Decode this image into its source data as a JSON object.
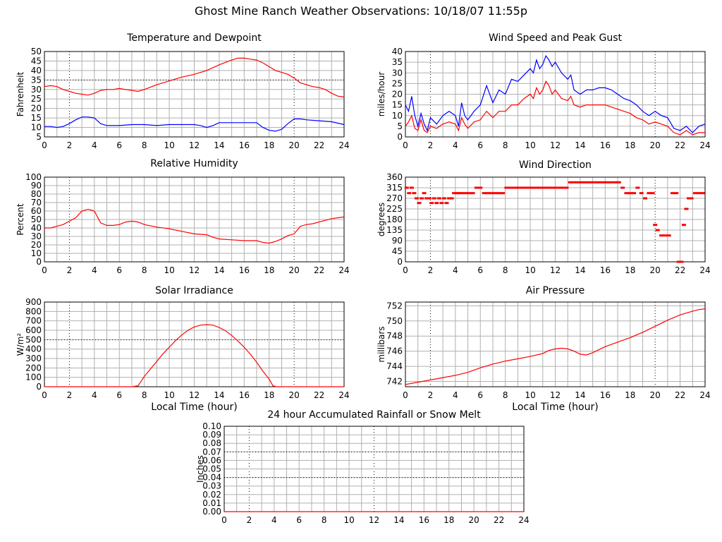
{
  "page": {
    "title": "Ghost Mine Ranch Weather Observations: 10/18/07 11:55p"
  },
  "chart_data": [
    {
      "id": "temp",
      "type": "line",
      "title": "Temperature and Dewpoint",
      "xlabel": "",
      "ylabel": "Fahrenheit",
      "xlim": [
        0,
        24
      ],
      "ylim": [
        5,
        50
      ],
      "xticks": [
        0,
        2,
        4,
        6,
        8,
        10,
        12,
        14,
        16,
        18,
        20,
        22,
        24
      ],
      "yticks": [
        5,
        10,
        15,
        20,
        25,
        30,
        35,
        40,
        45,
        50
      ],
      "series": [
        {
          "color": "#ff0000",
          "x": [
            0,
            0.5,
            1,
            1.5,
            2,
            2.5,
            3,
            3.5,
            4,
            4.5,
            5,
            5.5,
            6,
            6.5,
            7,
            7.5,
            8,
            9,
            10,
            11,
            12,
            13,
            14,
            15,
            15.5,
            16,
            16.5,
            17,
            17.5,
            18,
            18.5,
            19,
            19.5,
            20,
            20.5,
            21,
            21.5,
            22,
            22.5,
            23,
            23.5,
            24
          ],
          "y": [
            31.5,
            32,
            31.5,
            30,
            29,
            28,
            27.5,
            27,
            28,
            29.5,
            30,
            30,
            30.5,
            30,
            29.5,
            29,
            30,
            32.5,
            34.5,
            36.5,
            38,
            40,
            43,
            45.5,
            46.5,
            46.5,
            46,
            45.5,
            44,
            42,
            40,
            39,
            38,
            36,
            33.5,
            32.5,
            31.5,
            31,
            30,
            28,
            26.5,
            26
          ]
        },
        {
          "color": "#0000ff",
          "x": [
            0,
            0.5,
            1,
            1.5,
            2,
            2.5,
            3,
            3.5,
            4,
            4.5,
            5,
            6,
            7,
            8,
            9,
            10,
            11,
            12,
            12.5,
            13,
            13.5,
            14,
            15,
            16,
            17,
            17.5,
            18,
            18.5,
            19,
            19.5,
            20,
            20.5,
            21,
            22,
            23,
            24
          ],
          "y": [
            10.5,
            10.5,
            10,
            10.5,
            12,
            14,
            15.5,
            15.5,
            15,
            12,
            11,
            11,
            11.5,
            11.5,
            11,
            11.5,
            11.5,
            11.5,
            11,
            10,
            11,
            12.5,
            12.5,
            12.5,
            12.5,
            10,
            8.5,
            8,
            9,
            12,
            14.5,
            14.5,
            14,
            13.5,
            13,
            11.5
          ]
        }
      ]
    },
    {
      "id": "wind",
      "type": "line",
      "title": "Wind Speed and Peak Gust",
      "xlabel": "",
      "ylabel": "miles/hour",
      "xlim": [
        0,
        24
      ],
      "ylim": [
        0,
        40
      ],
      "xticks": [
        0,
        2,
        4,
        6,
        8,
        10,
        12,
        14,
        16,
        18,
        20,
        22,
        24
      ],
      "yticks": [
        0,
        5,
        10,
        15,
        20,
        25,
        30,
        35,
        40
      ],
      "series": [
        {
          "color": "#0000ff",
          "x": [
            0,
            0.25,
            0.5,
            0.75,
            1,
            1.25,
            1.5,
            1.75,
            2,
            2.5,
            3,
            3.5,
            4,
            4.25,
            4.5,
            4.75,
            5,
            5.5,
            6,
            6.5,
            7,
            7.5,
            8,
            8.5,
            9,
            9.5,
            10,
            10.25,
            10.5,
            10.75,
            11,
            11.25,
            11.5,
            11.75,
            12,
            12.5,
            13,
            13.25,
            13.5,
            14,
            14.5,
            15,
            15.5,
            16,
            16.5,
            17,
            17.5,
            18,
            18.5,
            19,
            19.5,
            20,
            20.5,
            21,
            21.5,
            22,
            22.5,
            23,
            23.5,
            24
          ],
          "y": [
            15,
            12,
            19,
            10,
            5,
            11,
            6,
            3,
            9,
            6,
            10,
            12,
            10,
            5,
            16,
            10,
            8,
            12,
            15,
            24,
            16,
            22,
            20,
            27,
            26,
            29,
            32,
            30,
            36,
            32,
            34,
            38,
            36,
            33,
            35,
            30,
            27,
            29,
            22,
            20,
            22,
            22,
            23,
            23,
            22,
            20,
            18,
            17,
            15,
            12,
            10,
            12,
            10,
            9,
            4,
            3,
            5,
            2,
            5,
            6
          ]
        },
        {
          "color": "#ff0000",
          "x": [
            0,
            0.25,
            0.5,
            0.75,
            1,
            1.25,
            1.5,
            1.75,
            2,
            2.5,
            3,
            3.5,
            4,
            4.25,
            4.5,
            4.75,
            5,
            5.5,
            6,
            6.5,
            7,
            7.5,
            8,
            8.5,
            9,
            9.5,
            10,
            10.25,
            10.5,
            10.75,
            11,
            11.25,
            11.5,
            11.75,
            12,
            12.5,
            13,
            13.25,
            13.5,
            14,
            14.5,
            15,
            15.5,
            16,
            16.5,
            17,
            17.5,
            18,
            18.5,
            19,
            19.5,
            20,
            20.5,
            21,
            21.5,
            22,
            22.5,
            23,
            23.5,
            24
          ],
          "y": [
            5,
            7,
            10,
            4,
            3,
            8,
            3,
            2,
            5,
            4,
            6,
            7,
            6,
            3,
            9,
            6,
            4,
            7,
            8,
            12,
            9,
            12,
            12,
            15,
            15,
            18,
            20,
            18,
            23,
            20,
            22,
            26,
            24,
            20,
            22,
            18,
            17,
            19,
            15,
            14,
            15,
            15,
            15,
            15,
            14,
            13,
            12,
            11,
            9,
            8,
            6,
            7,
            6,
            5,
            2,
            1,
            3,
            1,
            2,
            2
          ]
        }
      ]
    },
    {
      "id": "rh",
      "type": "line",
      "title": "Relative Humidity",
      "xlabel": "",
      "ylabel": "Percent",
      "xlim": [
        0,
        24
      ],
      "ylim": [
        0,
        100
      ],
      "xticks": [
        0,
        2,
        4,
        6,
        8,
        10,
        12,
        14,
        16,
        18,
        20,
        22,
        24
      ],
      "yticks": [
        0,
        10,
        20,
        30,
        40,
        50,
        60,
        70,
        80,
        90,
        100
      ],
      "series": [
        {
          "color": "#ff0000",
          "x": [
            0,
            0.5,
            1,
            1.5,
            2,
            2.5,
            3,
            3.5,
            4,
            4.5,
            5,
            5.5,
            6,
            6.5,
            7,
            7.5,
            8,
            9,
            10,
            11,
            12,
            13,
            13.5,
            14,
            15,
            16,
            17,
            17.5,
            18,
            18.5,
            19,
            19.5,
            20,
            20.5,
            21,
            21.5,
            22,
            22.5,
            23,
            23.5,
            24
          ],
          "y": [
            40,
            40,
            42,
            44,
            48,
            52,
            60,
            62,
            60,
            46,
            43,
            43,
            44,
            47,
            48,
            47,
            44,
            41,
            39,
            36,
            33,
            32,
            29,
            27,
            26,
            25,
            25,
            23,
            22,
            24,
            27,
            31,
            33,
            42,
            44,
            45,
            47,
            49,
            51,
            52,
            53
          ]
        }
      ]
    },
    {
      "id": "wdir",
      "type": "scatter",
      "title": "Wind Direction",
      "xlabel": "",
      "ylabel": "degrees",
      "xlim": [
        0,
        24
      ],
      "ylim": [
        0,
        360
      ],
      "xticks": [
        0,
        2,
        4,
        6,
        8,
        10,
        12,
        14,
        16,
        18,
        20,
        22,
        24
      ],
      "yticks": [
        0,
        45,
        90,
        135,
        180,
        225,
        270,
        315,
        360
      ],
      "series": [
        {
          "color": "#ff0000",
          "x": [
            0.1,
            0.3,
            0.5,
            0.7,
            0.9,
            1.1,
            1.3,
            1.5,
            1.7,
            1.9,
            2.1,
            2.3,
            2.5,
            2.7,
            2.9,
            3.1,
            3.3,
            3.5,
            3.7,
            3.9,
            4.1,
            4.3,
            4.5,
            4.8,
            5.1,
            5.4,
            5.7,
            6.0,
            6.3,
            6.6,
            6.9,
            7.2,
            7.5,
            7.8,
            8.1,
            8.4,
            8.7,
            9.0,
            9.3,
            9.6,
            9.9,
            10.2,
            10.5,
            10.8,
            11.1,
            11.4,
            11.7,
            12.0,
            12.3,
            12.6,
            12.9,
            13.2,
            13.5,
            13.8,
            14.1,
            14.4,
            14.7,
            15.0,
            15.3,
            15.6,
            15.9,
            16.2,
            16.5,
            16.8,
            17.1,
            17.4,
            17.7,
            18.0,
            18.3,
            18.6,
            18.9,
            19.2,
            19.5,
            19.8,
            20.0,
            20.2,
            20.5,
            20.8,
            21.1,
            21.4,
            21.7,
            21.9,
            22.1,
            22.3,
            22.5,
            22.7,
            22.9,
            23.2,
            23.5,
            23.8
          ],
          "y": [
            315,
            292,
            315,
            292,
            270,
            250,
            270,
            292,
            270,
            270,
            250,
            270,
            250,
            270,
            250,
            270,
            250,
            270,
            270,
            292,
            292,
            292,
            292,
            292,
            292,
            292,
            315,
            315,
            292,
            292,
            292,
            292,
            292,
            292,
            315,
            315,
            315,
            315,
            315,
            315,
            315,
            315,
            315,
            315,
            315,
            315,
            315,
            315,
            315,
            315,
            315,
            338,
            338,
            338,
            338,
            338,
            338,
            338,
            338,
            338,
            338,
            338,
            338,
            338,
            338,
            315,
            292,
            292,
            292,
            315,
            292,
            270,
            292,
            292,
            157,
            135,
            112,
            112,
            112,
            292,
            292,
            0,
            0,
            157,
            225,
            270,
            270,
            292,
            292,
            292
          ]
        }
      ]
    },
    {
      "id": "solar",
      "type": "line",
      "title": "Solar Irradiance",
      "xlabel": "Local Time (hour)",
      "ylabel": "W/m²",
      "xlim": [
        0,
        24
      ],
      "ylim": [
        0,
        900
      ],
      "xticks": [
        0,
        2,
        4,
        6,
        8,
        10,
        12,
        14,
        16,
        18,
        20,
        22,
        24
      ],
      "yticks": [
        0,
        100,
        200,
        300,
        400,
        500,
        600,
        700,
        800,
        900
      ],
      "series": [
        {
          "color": "#ff0000",
          "x": [
            0,
            7,
            7.5,
            8,
            8.5,
            9,
            9.5,
            10,
            10.5,
            11,
            11.5,
            12,
            12.5,
            13,
            13.5,
            14,
            14.5,
            15,
            15.5,
            16,
            16.5,
            17,
            17.5,
            18,
            18.3,
            18.6,
            19,
            24
          ],
          "y": [
            0,
            0,
            10,
            110,
            190,
            270,
            350,
            420,
            490,
            550,
            600,
            635,
            655,
            660,
            655,
            630,
            595,
            545,
            485,
            420,
            345,
            260,
            165,
            80,
            10,
            0,
            0,
            0
          ]
        }
      ]
    },
    {
      "id": "pressure",
      "type": "line",
      "title": "Air Pressure",
      "xlabel": "Local Time (hour)",
      "ylabel": "millibars",
      "xlim": [
        0,
        24
      ],
      "ylim": [
        741.3,
        752.5
      ],
      "xticks": [
        0,
        2,
        4,
        6,
        8,
        10,
        12,
        14,
        16,
        18,
        20,
        22,
        24
      ],
      "yticks": [
        742,
        744,
        746,
        748,
        750,
        752
      ],
      "series": [
        {
          "color": "#ff0000",
          "x": [
            0,
            1,
            2,
            3,
            4,
            5,
            6,
            7,
            8,
            9,
            10,
            11,
            11.5,
            12,
            12.5,
            13,
            13.5,
            14,
            14.5,
            15,
            16,
            17,
            18,
            19,
            20,
            21,
            22,
            23,
            23.5,
            24
          ],
          "y": [
            741.6,
            741.9,
            742.2,
            742.5,
            742.8,
            743.2,
            743.8,
            744.3,
            744.7,
            745.0,
            745.3,
            745.7,
            746.1,
            746.3,
            746.4,
            746.3,
            746.0,
            745.6,
            745.5,
            745.8,
            746.6,
            747.2,
            747.8,
            748.5,
            749.3,
            750.1,
            750.8,
            751.3,
            751.5,
            751.6
          ]
        }
      ]
    },
    {
      "id": "rain",
      "type": "line",
      "title": "24 hour Accumulated Rainfall or Snow Melt",
      "xlabel": "",
      "ylabel": "Inches",
      "xlim": [
        0,
        24
      ],
      "ylim": [
        0,
        0.1
      ],
      "xticks": [
        0,
        2,
        4,
        6,
        8,
        10,
        12,
        14,
        16,
        18,
        20,
        22,
        24
      ],
      "yticks": [
        "0.00",
        "0.01",
        "0.02",
        "0.03",
        "0.04",
        "0.05",
        "0.06",
        "0.07",
        "0.08",
        "0.09",
        "0.10"
      ],
      "series": [
        {
          "color": "#ff0000",
          "x": [
            0,
            24
          ],
          "y": [
            0,
            0
          ]
        }
      ]
    }
  ]
}
